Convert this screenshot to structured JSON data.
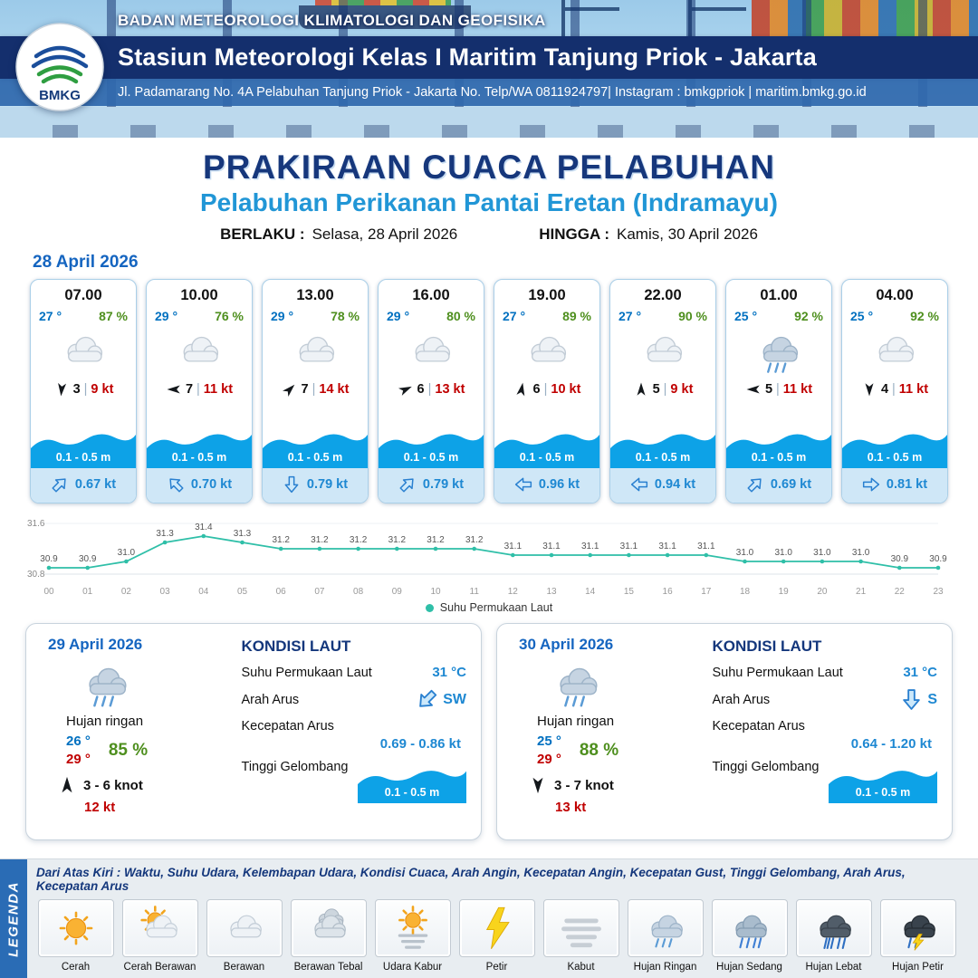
{
  "header": {
    "logo": "BMKG",
    "agency": "BADAN METEOROLOGI KLIMATOLOGI DAN GEOFISIKA",
    "station": "Stasiun Meteorologi Kelas I Maritim Tanjung Priok - Jakarta",
    "address": "Jl. Padamarang No. 4A Pelabuhan Tanjung Priok - Jakarta No. Telp/WA 0811924797| Instagram : bmkgpriok | maritim.bmkg.go.id"
  },
  "title": {
    "main": "PRAKIRAAN CUACA PELABUHAN",
    "subtitle": "Pelabuhan Perikanan Pantai Eretan (Indramayu)",
    "valid_from_label": "BERLAKU :",
    "valid_from": "Selasa, 28 April 2026",
    "valid_to_label": "HINGGA :",
    "valid_to": "Kamis, 30 April 2026"
  },
  "forecast": {
    "date": "28 April 2026",
    "cards": [
      {
        "time": "07.00",
        "temp": "27 °",
        "humidity": "87 %",
        "weather_icon": "berawan",
        "wind_rotation": 185,
        "wind_speed": "3",
        "wind_gust": "9 kt",
        "wave_height": "0.1 - 0.5 m",
        "current_rotation": 45,
        "current_speed": "0.67 kt"
      },
      {
        "time": "10.00",
        "temp": "29 °",
        "humidity": "76 %",
        "weather_icon": "berawan",
        "wind_rotation": 270,
        "wind_speed": "7",
        "wind_gust": "11 kt",
        "wave_height": "0.1 - 0.5 m",
        "current_rotation": 315,
        "current_speed": "0.70 kt"
      },
      {
        "time": "13.00",
        "temp": "29 °",
        "humidity": "78 %",
        "weather_icon": "berawan",
        "wind_rotation": 45,
        "wind_speed": "7",
        "wind_gust": "14 kt",
        "wave_height": "0.1 - 0.5 m",
        "current_rotation": 180,
        "current_speed": "0.79 kt"
      },
      {
        "time": "16.00",
        "temp": "29 °",
        "humidity": "80 %",
        "weather_icon": "berawan",
        "wind_rotation": 65,
        "wind_speed": "6",
        "wind_gust": "13 kt",
        "wave_height": "0.1 - 0.5 m",
        "current_rotation": 45,
        "current_speed": "0.79 kt"
      },
      {
        "time": "19.00",
        "temp": "27 °",
        "humidity": "89 %",
        "weather_icon": "berawan",
        "wind_rotation": 10,
        "wind_speed": "6",
        "wind_gust": "10 kt",
        "wave_height": "0.1 - 0.5 m",
        "current_rotation": 270,
        "current_speed": "0.96 kt"
      },
      {
        "time": "22.00",
        "temp": "27 °",
        "humidity": "90 %",
        "weather_icon": "berawan",
        "wind_rotation": 0,
        "wind_speed": "5",
        "wind_gust": "9 kt",
        "wave_height": "0.1 - 0.5 m",
        "current_rotation": 270,
        "current_speed": "0.94 kt"
      },
      {
        "time": "01.00",
        "temp": "25 °",
        "humidity": "92 %",
        "weather_icon": "hujan-ringan",
        "wind_rotation": 270,
        "wind_speed": "5",
        "wind_gust": "11 kt",
        "wave_height": "0.1 - 0.5 m",
        "current_rotation": 45,
        "current_speed": "0.69 kt"
      },
      {
        "time": "04.00",
        "temp": "25 °",
        "humidity": "92 %",
        "weather_icon": "berawan",
        "wind_rotation": 180,
        "wind_speed": "4",
        "wind_gust": "11 kt",
        "wave_height": "0.1 - 0.5 m",
        "current_rotation": 90,
        "current_speed": "0.81 kt"
      }
    ]
  },
  "chart_data": {
    "type": "line",
    "series_name": "Suhu Permukaan Laut",
    "x": [
      "00",
      "01",
      "02",
      "03",
      "04",
      "05",
      "06",
      "07",
      "08",
      "09",
      "10",
      "11",
      "12",
      "13",
      "14",
      "15",
      "16",
      "17",
      "18",
      "19",
      "20",
      "21",
      "22",
      "23"
    ],
    "values": [
      30.9,
      30.9,
      31.0,
      31.3,
      31.4,
      31.3,
      31.2,
      31.2,
      31.2,
      31.2,
      31.2,
      31.2,
      31.1,
      31.1,
      31.1,
      31.1,
      31.1,
      31.1,
      31.0,
      31.0,
      31.0,
      31.0,
      30.9,
      30.9
    ],
    "ylim": [
      30.8,
      31.6
    ],
    "xlabel": "",
    "ylabel": "",
    "grid": false,
    "legend_position": "bottom",
    "line_color": "#2fbfa8"
  },
  "daily": [
    {
      "date": "29 April 2026",
      "weather_icon": "hujan-ringan",
      "weather_label": "Hujan ringan",
      "temp_min": "26 °",
      "temp_max": "29 °",
      "humidity": "85 %",
      "wind_rotation": 0,
      "wind_range": "3  - 6 knot",
      "wind_gust": "12 kt",
      "sea_title": "KONDISI LAUT",
      "sst_label": "Suhu Permukaan Laut",
      "sst_value": "31 °C",
      "current_dir_label": "Arah Arus",
      "current_rotation": 225,
      "current_dir": "SW",
      "current_speed_label": "Kecepatan Arus",
      "current_speed": "0.69  - 0.86 kt",
      "wave_label": "Tinggi Gelombang",
      "wave_height": "0.1 - 0.5 m"
    },
    {
      "date": "30 April 2026",
      "weather_icon": "hujan-ringan",
      "weather_label": "Hujan ringan",
      "temp_min": "25 °",
      "temp_max": "29 °",
      "humidity": "88 %",
      "wind_rotation": 180,
      "wind_range": "3  - 7 knot",
      "wind_gust": "13 kt",
      "sea_title": "KONDISI LAUT",
      "sst_label": "Suhu Permukaan Laut",
      "sst_value": "31 °C",
      "current_dir_label": "Arah Arus",
      "current_rotation": 180,
      "current_dir": "S",
      "current_speed_label": "Kecepatan Arus",
      "current_speed": "0.64  - 1.20 kt",
      "wave_label": "Tinggi Gelombang",
      "wave_height": "0.1 - 0.5 m"
    }
  ],
  "legend": {
    "title": "LEGENDA",
    "description": "Dari Atas Kiri : Waktu, Suhu Udara, Kelembapan Udara, Kondisi Cuaca, Arah Angin, Kecepatan Angin, Kecepatan Gust, Tinggi Gelombang, Arah Arus, Kecepatan Arus",
    "items": [
      {
        "icon": "cerah",
        "label": "Cerah"
      },
      {
        "icon": "cerah-berawan",
        "label": "Cerah Berawan"
      },
      {
        "icon": "berawan",
        "label": "Berawan"
      },
      {
        "icon": "berawan-tebal",
        "label": "Berawan Tebal"
      },
      {
        "icon": "udara-kabur",
        "label": "Udara Kabur"
      },
      {
        "icon": "petir",
        "label": "Petir"
      },
      {
        "icon": "kabut",
        "label": "Kabut"
      },
      {
        "icon": "hujan-ringan",
        "label": "Hujan Ringan"
      },
      {
        "icon": "hujan-sedang",
        "label": "Hujan Sedang"
      },
      {
        "icon": "hujan-lebat",
        "label": "Hujan Lebat"
      },
      {
        "icon": "hujan-petir",
        "label": "Hujan Petir"
      }
    ]
  },
  "colors": {
    "header_navy": "#142f6d",
    "title_navy": "#16377c",
    "subtitle_blue": "#2196d6",
    "date_blue": "#1565c0",
    "temp_blue": "#0070c0",
    "humidity_green": "#4e8f1e",
    "gust_red": "#c00000",
    "current_blue": "#1e88d2",
    "wave_blue": "#0da2e7",
    "chart_teal": "#2fbfa8",
    "legend_bar_blue": "#2a6cb5"
  }
}
